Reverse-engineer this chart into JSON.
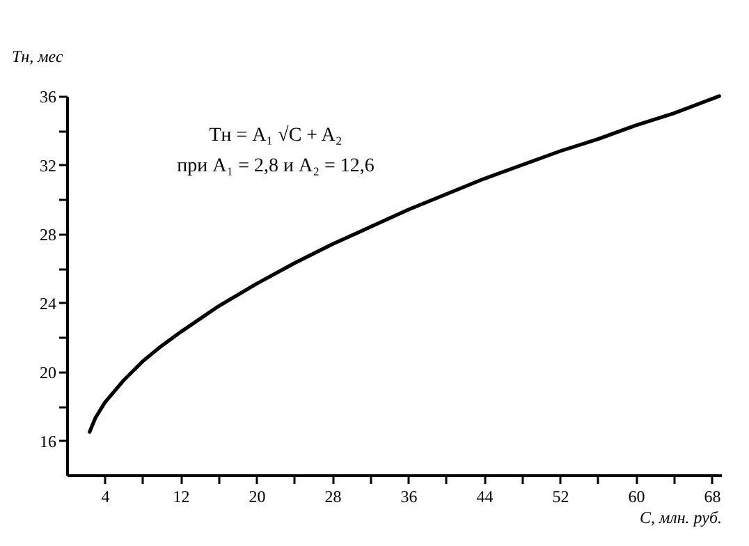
{
  "chart_data": {
    "type": "line",
    "xlabel": "C, млн. руб.",
    "ylabel": "Tн, мес",
    "annotations": [
      "Tн = A₁ √C + A₂",
      "при A₁ = 2,8 и A₂ = 12,6"
    ],
    "x": [
      2.4,
      3,
      4,
      6,
      8,
      10,
      12,
      16,
      20,
      24,
      28,
      32,
      36,
      40,
      44,
      48,
      52,
      56,
      60,
      64,
      68.8
    ],
    "series": [
      {
        "color": "#000000",
        "values": [
          16.5,
          17.3,
          18.2,
          19.5,
          20.6,
          21.5,
          22.3,
          23.8,
          25.1,
          26.3,
          27.4,
          28.4,
          29.4,
          30.3,
          31.2,
          32.0,
          32.8,
          33.5,
          34.3,
          35.0,
          36.0
        ]
      }
    ],
    "xlim": [
      0,
      69
    ],
    "ylim": [
      14,
      36
    ],
    "xticks": [
      4,
      {
        "value": 8,
        "label": null
      },
      12,
      {
        "value": 16,
        "label": null
      },
      20,
      {
        "value": 24,
        "label": null
      },
      28,
      {
        "value": 32,
        "label": null
      },
      36,
      {
        "value": 40,
        "label": null
      },
      44,
      {
        "value": 48,
        "label": null
      },
      52,
      {
        "value": 56,
        "label": null
      },
      60,
      {
        "value": 64,
        "label": null
      },
      68
    ],
    "yticks": [
      16,
      {
        "value": 18,
        "label": null
      },
      20,
      {
        "value": 22,
        "label": null
      },
      24,
      {
        "value": 26,
        "label": null
      },
      28,
      {
        "value": 30,
        "label": null
      },
      32,
      {
        "value": 34,
        "label": null
      },
      36
    ],
    "grid": false,
    "marker": "none",
    "line_style": "solid"
  }
}
